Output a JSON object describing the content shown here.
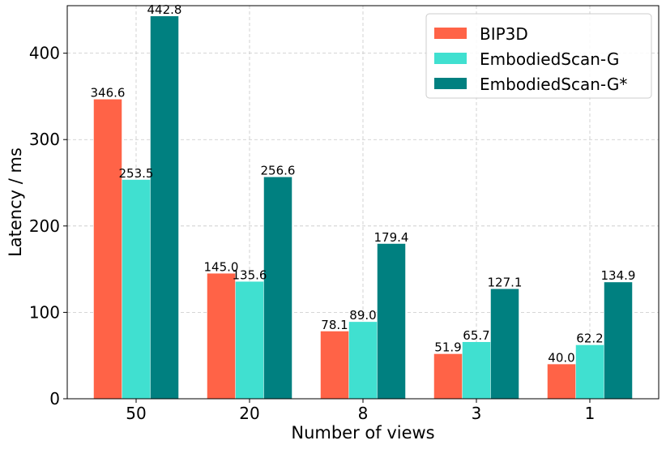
{
  "chart_data": {
    "type": "bar",
    "title": "",
    "xlabel": "Number of views",
    "ylabel": "Latency / ms",
    "categories": [
      "50",
      "20",
      "8",
      "3",
      "1"
    ],
    "series": [
      {
        "name": "BIP3D",
        "color": "#ff6347",
        "values": [
          346.6,
          145.0,
          78.1,
          51.9,
          40.0
        ]
      },
      {
        "name": "EmbodiedScan-G",
        "color": "#40e0d0",
        "values": [
          253.5,
          135.6,
          89.0,
          65.7,
          62.2
        ]
      },
      {
        "name": "EmbodiedScan-G*",
        "color": "#008080",
        "values": [
          442.8,
          256.6,
          179.4,
          127.1,
          134.9
        ]
      }
    ],
    "ylim": [
      0,
      455
    ],
    "yticks": [
      0,
      100,
      200,
      300,
      400
    ],
    "grid": true,
    "legend_position": "top-right"
  }
}
